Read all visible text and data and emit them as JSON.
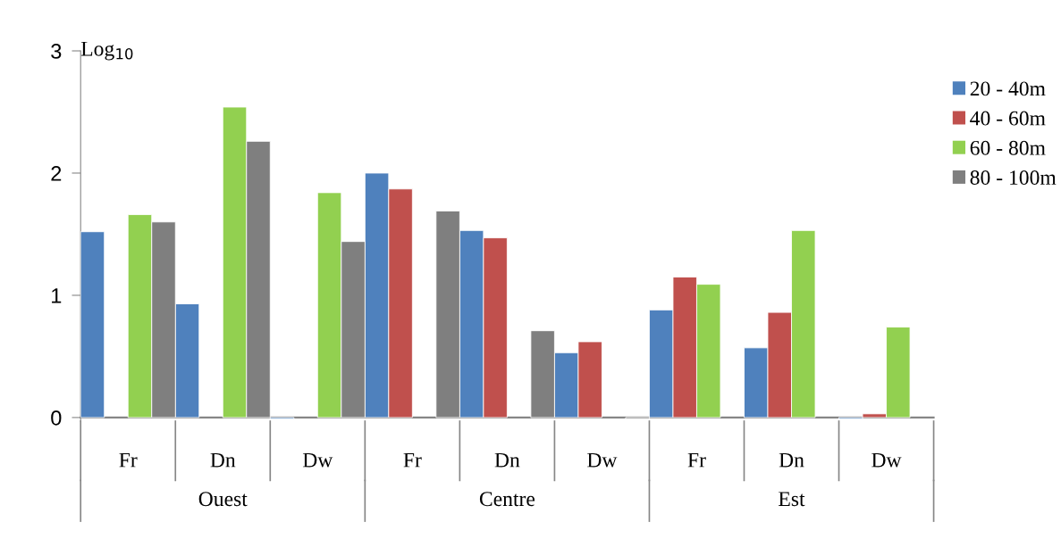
{
  "chart_data": {
    "type": "bar",
    "ylabel": "Log$_{10}$",
    "categories": [
      "Fr",
      "Dn",
      "Dw",
      "Fr",
      "Dn",
      "Dw",
      "Fr",
      "Dn",
      "Dw"
    ],
    "annotations": [
      "Ouest",
      "Centre",
      "Est"
    ],
    "series": [
      {
        "name": "20 - 40m",
        "color": "#4f81bd",
        "values": [
          1.52,
          0.93,
          -0.01,
          2.0,
          1.53,
          0.53,
          0.88,
          0.57,
          -0.01
        ]
      },
      {
        "name": "40 - 60m",
        "color": "#c0504d",
        "values": [
          null,
          null,
          null,
          1.87,
          1.47,
          0.62,
          1.15,
          0.86,
          0.03
        ]
      },
      {
        "name": "60 - 80m",
        "color": "#92d050",
        "values": [
          1.66,
          2.54,
          1.84,
          null,
          null,
          null,
          1.09,
          1.53,
          0.74
        ]
      },
      {
        "name": "80 - 100m",
        "color": "#7f7f7f",
        "values": [
          1.6,
          2.26,
          1.44,
          1.69,
          0.71,
          -0.01,
          null,
          null,
          null
        ]
      }
    ],
    "ylim": [
      -0.03,
      3
    ],
    "yticks": [
      0,
      1,
      2,
      3
    ],
    "grid": false,
    "legend": "right"
  }
}
